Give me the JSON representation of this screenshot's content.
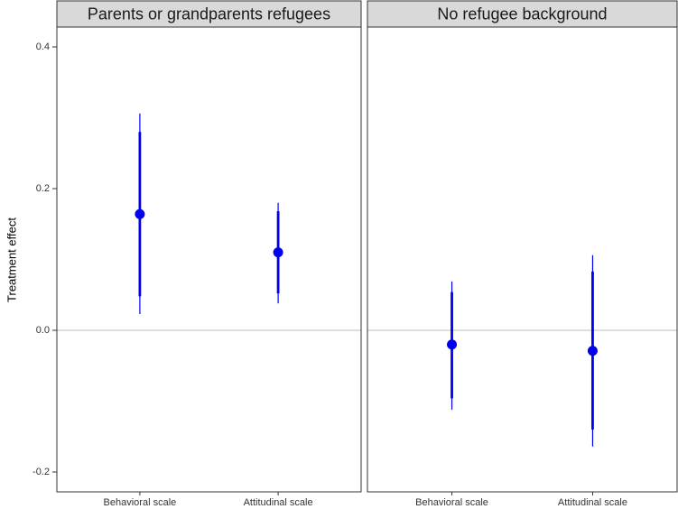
{
  "chart_data": {
    "type": "pointrange",
    "ylabel": "Treatment effect",
    "color": "#0000ee",
    "ylim": [
      -0.228,
      0.428
    ],
    "yticks": [
      -0.2,
      {
        "value": 0,
        "label": "0.0"
      },
      0.2,
      0.4
    ],
    "reference_line": 0,
    "panels": [
      {
        "title": "Parents or grandparents refugees",
        "categories": [
          "Behavioral scale",
          "Attitudinal scale"
        ],
        "values": [
          0.164,
          0.11
        ],
        "ci_outer": [
          [
            0.023,
            0.306
          ],
          [
            0.038,
            0.18
          ]
        ],
        "ci_inner": [
          [
            0.048,
            0.28
          ],
          [
            0.052,
            0.168
          ]
        ]
      },
      {
        "title": "No refugee background",
        "categories": [
          "Behavioral scale",
          "Attitudinal scale"
        ],
        "values": [
          -0.02,
          -0.029
        ],
        "ci_outer": [
          [
            -0.112,
            0.069
          ],
          [
            -0.164,
            0.106
          ]
        ],
        "ci_inner": [
          [
            -0.096,
            0.054
          ],
          [
            -0.14,
            0.083
          ]
        ]
      }
    ]
  }
}
